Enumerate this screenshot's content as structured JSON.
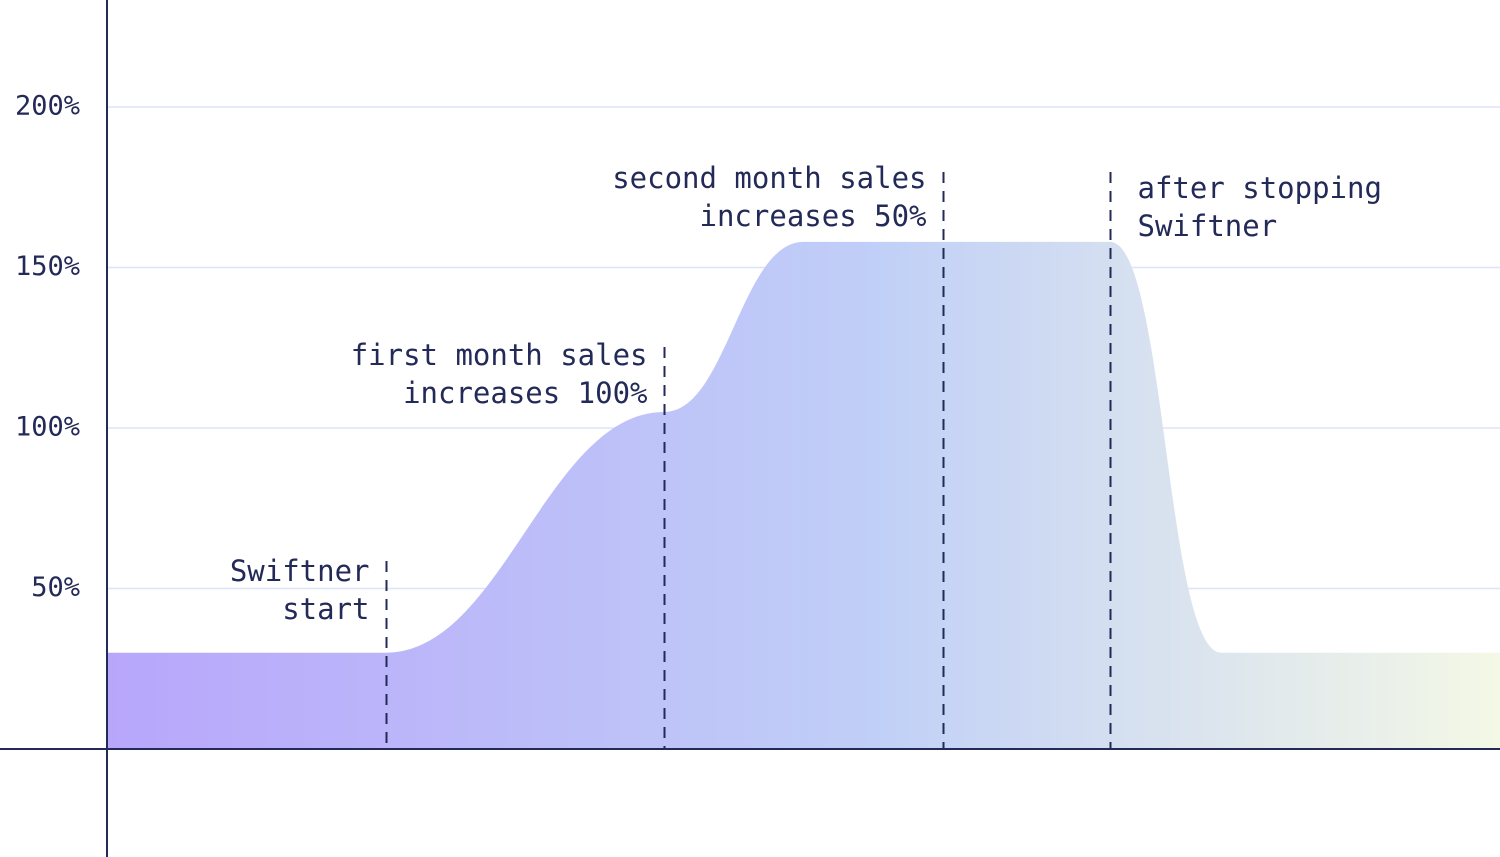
{
  "chart_data": {
    "type": "area",
    "title": "",
    "xlabel": "",
    "ylabel": "",
    "ylim": [
      0,
      200
    ],
    "ytick_values": [
      50,
      100,
      150,
      200
    ],
    "ytick_labels": [
      "50%",
      "100%",
      "150%",
      "200%"
    ],
    "grid": true,
    "legend": "none",
    "series": [
      {
        "x": [
          0,
          1,
          2,
          2.5,
          3,
          3.6,
          4,
          5
        ],
        "y": [
          30,
          30,
          105,
          158,
          158,
          158,
          30,
          30
        ]
      }
    ],
    "annotations": [
      {
        "x": 1,
        "lines": [
          "Swiftner",
          "start"
        ],
        "side": "left"
      },
      {
        "x": 2,
        "lines": [
          "first month sales",
          "increases 100%"
        ],
        "side": "left"
      },
      {
        "x": 3,
        "lines": [
          "second month sales",
          "increases 50%"
        ],
        "side": "left"
      },
      {
        "x": 3.6,
        "lines": [
          "after stopping",
          "Swiftner"
        ],
        "side": "right"
      }
    ],
    "colors": {
      "axis": "#232a58",
      "grid": "#dde3f7",
      "text": "#232a58",
      "gradient": [
        "#b8a6fb",
        "#c0cff7",
        "#f4f8e6"
      ]
    }
  }
}
